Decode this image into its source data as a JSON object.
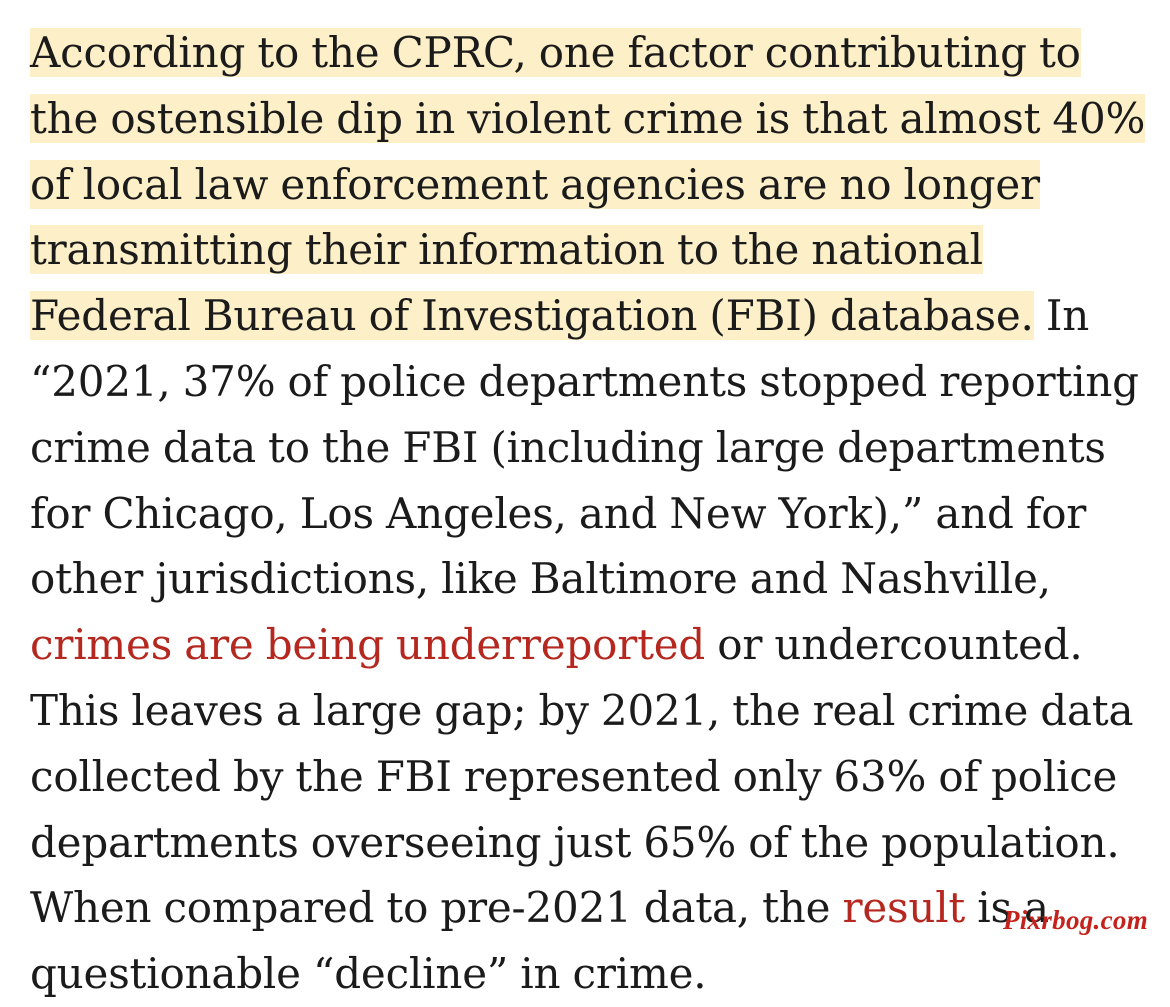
{
  "article": {
    "highlighted_text": "According to the CPRC, one factor contributing to the ostensible dip in violent crime is that almost 40% of local law enforcement agencies are no longer transmitting their information to the national Federal Bureau of Investigation (FBI) database.",
    "text_part_1": " In “2021, 37% of police departments stopped reporting crime data to the FBI (including large departments for Chicago, Los Angeles, and New York),” and for other jurisdictions, like Baltimore and Nashville, ",
    "link_1": "crimes are being underreported",
    "text_part_2": " or undercounted. This leaves a large gap; by 2021, the real crime data collected by the FBI represented only 63% of police departments overseeing just 65% of the population. When compared to pre-2021 data, the ",
    "link_2": "result",
    "text_part_3": " is a questionable “decline” in crime."
  },
  "watermark": "Pixrbog.com",
  "colors": {
    "highlight": "#fdf0c8",
    "link": "#b5281f",
    "text": "#1b1b1b"
  }
}
